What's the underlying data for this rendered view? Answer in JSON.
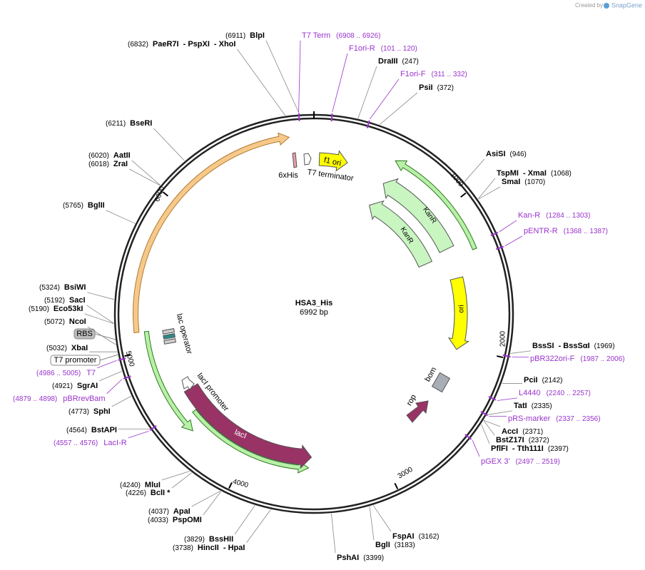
{
  "credit": "Created by",
  "brand": "SnapGene",
  "plasmid": {
    "name": "HSA3_His",
    "length": "6992 bp"
  },
  "ticks": [
    "1000",
    "2000",
    "3000",
    "4000",
    "5000",
    "6000"
  ],
  "sites": [
    {
      "position": "(6911)",
      "names": [
        "BlpI"
      ]
    },
    {
      "position": "(6832)",
      "names": [
        "PaeR7I",
        "- PspXI",
        "- XhoI"
      ]
    },
    {
      "position": "(247)",
      "names": [
        "DraIII"
      ]
    },
    {
      "position": "(372)",
      "names": [
        "PsiI"
      ]
    },
    {
      "position": "(946)",
      "names": [
        "AsiSI"
      ]
    },
    {
      "position": "(1068)",
      "names": [
        "TspMI",
        "- XmaI"
      ]
    },
    {
      "position": "(1070)",
      "names": [
        "SmaI"
      ]
    },
    {
      "position": "(1969)",
      "names": [
        "BssSI",
        "- BssSαI"
      ]
    },
    {
      "position": "(2142)",
      "names": [
        "PciI"
      ]
    },
    {
      "position": "(2335)",
      "names": [
        "TatI"
      ]
    },
    {
      "position": "(2371)",
      "names": [
        "AccI"
      ]
    },
    {
      "position": "(2372)",
      "names": [
        "BstZ17I"
      ]
    },
    {
      "position": "(2397)",
      "names": [
        "PflFI",
        "- Tth111I"
      ]
    },
    {
      "position": "(3162)",
      "names": [
        "FspAI"
      ]
    },
    {
      "position": "(3183)",
      "names": [
        "BglI"
      ]
    },
    {
      "position": "(3399)",
      "names": [
        "PshAI"
      ]
    },
    {
      "position": "(3829)",
      "names": [
        "BssHII"
      ]
    },
    {
      "position": "(3738)",
      "names": [
        "HincII",
        "- HpaI"
      ]
    },
    {
      "position": "(4037)",
      "names": [
        "ApaI"
      ]
    },
    {
      "position": "(4033)",
      "names": [
        "PspOMI"
      ]
    },
    {
      "position": "(4240)",
      "names": [
        "MluI"
      ]
    },
    {
      "position": "(4226)",
      "names": [
        "BclI *"
      ]
    },
    {
      "position": "(4564)",
      "names": [
        "BstAPI"
      ]
    },
    {
      "position": "(4773)",
      "names": [
        "SphI"
      ]
    },
    {
      "position": "(4921)",
      "names": [
        "SgrAI"
      ]
    },
    {
      "position": "(5032)",
      "names": [
        "XbaI"
      ]
    },
    {
      "position": "(5072)",
      "names": [
        "NcoI"
      ]
    },
    {
      "position": "(5190)",
      "names": [
        "Eco53kI"
      ]
    },
    {
      "position": "(5192)",
      "names": [
        "SacI"
      ]
    },
    {
      "position": "(5324)",
      "names": [
        "BsiWI"
      ]
    },
    {
      "position": "(5765)",
      "names": [
        "BglII"
      ]
    },
    {
      "position": "(6018)",
      "names": [
        "ZraI"
      ]
    },
    {
      "position": "(6020)",
      "names": [
        "AatII"
      ]
    },
    {
      "position": "(6211)",
      "names": [
        "BseRI"
      ]
    }
  ],
  "primers": [
    {
      "name": "T7 Term",
      "range": "(6908 .. 6926)"
    },
    {
      "name": "F1ori-R",
      "range": "(101 .. 120)"
    },
    {
      "name": "F1ori-F",
      "range": "(311 .. 332)"
    },
    {
      "name": "Kan-R",
      "range": "(1284 .. 1303)"
    },
    {
      "name": "pENTR-R",
      "range": "(1368 .. 1387)"
    },
    {
      "name": "pBR322ori-F",
      "range": "(1987 .. 2006)"
    },
    {
      "name": "L4440",
      "range": "(2240 .. 2257)"
    },
    {
      "name": "pRS-marker",
      "range": "(2337 .. 2356)"
    },
    {
      "name": "pGEX 3'",
      "range": "(2497 .. 2519)"
    },
    {
      "name": "T7",
      "range": "(4986 .. 5005)"
    },
    {
      "name": "pBRrevBam",
      "range": "(4879 .. 4898)"
    },
    {
      "name": "LacI-R",
      "range": "(4557 .. 4576)"
    }
  ],
  "boxed": [
    "RBS",
    "T7 promoter"
  ],
  "features": {
    "f1_ori": "f1 ori",
    "kanr_outer": "KanR",
    "kanr_inner": "KanR",
    "ori": "ori",
    "bom": "bom",
    "rop": "rop",
    "laci": "lacI",
    "laci_promoter": "lacI promoter",
    "lac_operator": "lac operator",
    "his": "6xHis",
    "t7_terminator": "T7 terminator"
  }
}
